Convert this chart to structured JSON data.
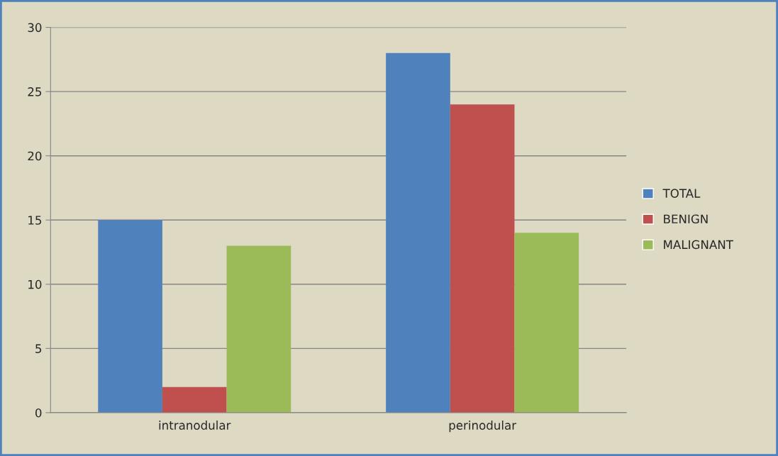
{
  "chart_data": {
    "type": "bar",
    "categories": [
      "intranodular",
      "perinodular"
    ],
    "series": [
      {
        "name": "TOTAL",
        "color": "#4f81bd",
        "values": [
          15,
          28
        ]
      },
      {
        "name": "BENIGN",
        "color": "#c0504d",
        "values": [
          2,
          24
        ]
      },
      {
        "name": "MALIGNANT",
        "color": "#9bbb59",
        "values": [
          13,
          14
        ]
      }
    ],
    "ylim": [
      0,
      30
    ],
    "yticks": [
      0,
      5,
      10,
      15,
      20,
      25,
      30
    ],
    "grid": "y",
    "legend": "right"
  }
}
